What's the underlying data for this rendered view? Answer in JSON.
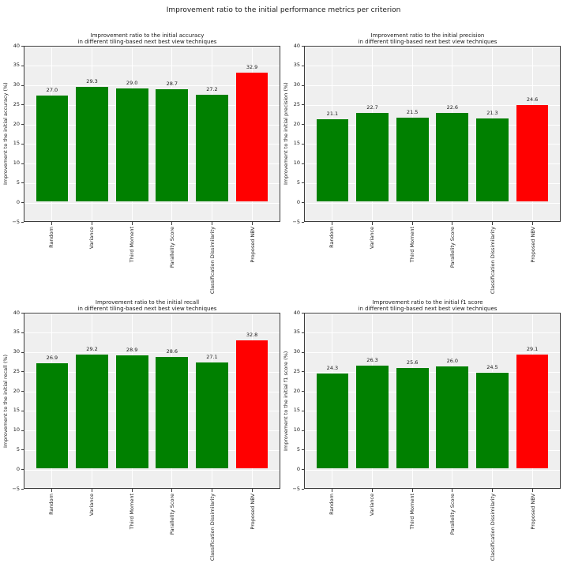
{
  "figure_title": "Improvement ratio to the initial performance metrics per criterion",
  "palette": {
    "bar_green": "#008000",
    "bar_red": "#ff0000",
    "plot_background": "#efefef",
    "grid_color": "#ffffff",
    "axis_color": "#3c3c3c",
    "text_color": "#1a1a1a"
  },
  "axes": {
    "ylim": [
      -5,
      40
    ],
    "y_ticks": [
      40,
      35,
      30,
      25,
      20,
      15,
      10,
      5,
      0,
      -5
    ]
  },
  "chart_data": [
    {
      "id": "accuracy",
      "type": "bar",
      "title_line1": "Improvement ratio to the initial accuracy",
      "title_line2": "in different tiling-based next best view techniques",
      "ylabel": "Improvement to the initial accuracy (%)",
      "xlabel": "",
      "categories": [
        "Random",
        "Variance",
        "Third Moment",
        "Parallelity Score",
        "Classification Dissimilarity",
        "Proposed NBV"
      ],
      "values": [
        27.0,
        29.3,
        29.0,
        28.7,
        27.2,
        32.9
      ],
      "bar_colors": [
        "#008000",
        "#008000",
        "#008000",
        "#008000",
        "#008000",
        "#ff0000"
      ],
      "ylim": [
        -5,
        40
      ],
      "grid": true,
      "legend": false
    },
    {
      "id": "precision",
      "type": "bar",
      "title_line1": "Improvement ratio to the initial precision",
      "title_line2": "in different tiling-based next best view techniques",
      "ylabel": "Improvement to the initial precision (%)",
      "xlabel": "",
      "categories": [
        "Random",
        "Variance",
        "Third Moment",
        "Parallelity Score",
        "Classification Dissimilarity",
        "Proposed NBV"
      ],
      "values": [
        21.1,
        22.7,
        21.5,
        22.6,
        21.3,
        24.6
      ],
      "bar_colors": [
        "#008000",
        "#008000",
        "#008000",
        "#008000",
        "#008000",
        "#ff0000"
      ],
      "ylim": [
        -5,
        40
      ],
      "grid": true,
      "legend": false
    },
    {
      "id": "recall",
      "type": "bar",
      "title_line1": "Improvement ratio to the initial recall",
      "title_line2": "in different tiling-based next best view techniques",
      "ylabel": "Improvement to the initial recall (%)",
      "xlabel": "",
      "categories": [
        "Random",
        "Variance",
        "Third Moment",
        "Parallelity Score",
        "Classification Dissimilarity",
        "Proposed NBV"
      ],
      "values": [
        26.9,
        29.2,
        28.9,
        28.6,
        27.1,
        32.8
      ],
      "bar_colors": [
        "#008000",
        "#008000",
        "#008000",
        "#008000",
        "#008000",
        "#ff0000"
      ],
      "ylim": [
        -5,
        40
      ],
      "grid": true,
      "legend": false
    },
    {
      "id": "f1-score",
      "type": "bar",
      "title_line1": "Improvement ratio to the initial f1 score",
      "title_line2": "in different tiling-based next best view techniques",
      "ylabel": "Improvement to the initial f1 score (%)",
      "xlabel": "",
      "categories": [
        "Random",
        "Variance",
        "Third Moment",
        "Parallelity Score",
        "Classification Dissimilarity",
        "Proposed NBV"
      ],
      "values": [
        24.3,
        26.3,
        25.6,
        26.0,
        24.5,
        29.1
      ],
      "bar_colors": [
        "#008000",
        "#008000",
        "#008000",
        "#008000",
        "#008000",
        "#ff0000"
      ],
      "ylim": [
        -5,
        40
      ],
      "grid": true,
      "legend": false
    }
  ]
}
